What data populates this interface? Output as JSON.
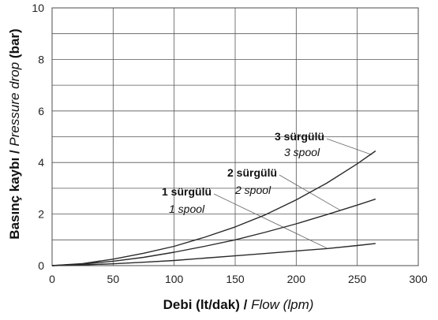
{
  "chart_data": {
    "type": "line",
    "xlabel": {
      "main": "Debi (lt/dak) / ",
      "alt": "Flow (lpm)"
    },
    "ylabel": {
      "main": "Basınç kaybı / ",
      "alt": "Pressure drop",
      "unit": " (bar)"
    },
    "xlim": [
      0,
      300
    ],
    "ylim": [
      0,
      10
    ],
    "xticks": [
      "0",
      "50",
      "100",
      "150",
      "200",
      "250",
      "300"
    ],
    "yticks": [
      "0",
      "2",
      "4",
      "6",
      "8",
      "10"
    ],
    "grid": true,
    "series": [
      {
        "name": "1 sürgülü",
        "alt_name": "1 spool",
        "x": [
          0,
          25,
          50,
          75,
          100,
          125,
          150,
          175,
          200,
          225,
          250,
          265
        ],
        "y": [
          0,
          0.03,
          0.07,
          0.13,
          0.2,
          0.29,
          0.38,
          0.47,
          0.57,
          0.66,
          0.78,
          0.86
        ]
      },
      {
        "name": "2 sürgülü",
        "alt_name": "2 spool",
        "x": [
          0,
          25,
          50,
          75,
          100,
          125,
          150,
          175,
          200,
          225,
          250,
          265
        ],
        "y": [
          0,
          0.06,
          0.17,
          0.32,
          0.52,
          0.75,
          1.0,
          1.3,
          1.62,
          1.98,
          2.35,
          2.58
        ]
      },
      {
        "name": "3 sürgülü",
        "alt_name": "3 spool",
        "x": [
          0,
          25,
          50,
          75,
          100,
          125,
          150,
          175,
          200,
          225,
          250,
          265
        ],
        "y": [
          0,
          0.08,
          0.25,
          0.48,
          0.75,
          1.1,
          1.5,
          1.98,
          2.55,
          3.2,
          3.95,
          4.45
        ]
      }
    ]
  }
}
